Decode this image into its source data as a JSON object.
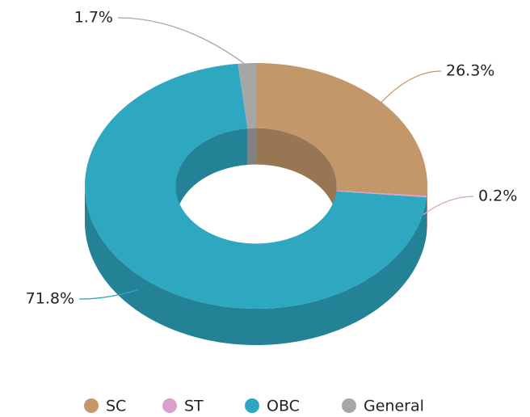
{
  "chart_data": {
    "type": "pie3d",
    "categories": [
      "SC",
      "ST",
      "OBC",
      "General"
    ],
    "values": [
      26.3,
      0.2,
      71.8,
      1.7
    ],
    "value_labels": [
      "26.3%",
      "0.2%",
      "71.8%",
      "1.7%"
    ],
    "colors": [
      "#c4976a",
      "#d9a0d0",
      "#2ea7c1",
      "#a6a6a6"
    ],
    "donut": true,
    "legend": "bottom"
  }
}
